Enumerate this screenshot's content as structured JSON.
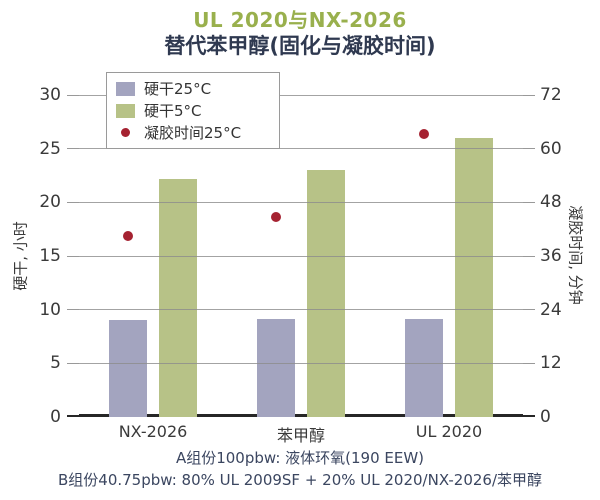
{
  "title": {
    "line1": "UL 2020与NX-2026",
    "line2": "替代苯甲醇(固化与凝胶时间)"
  },
  "footer": {
    "line1": "A组份100pbw: 液体环氧(190 EEW)",
    "line2": "B组份40.75pbw: 80% UL 2009SF + 20% UL 2020/NX-2026/苯甲醇"
  },
  "colors": {
    "bar_25c": "#a3a4bf",
    "bar_5c": "#b7c287",
    "gel_dot": "#a52231",
    "title_green": "#99b04d",
    "title_navy": "#2f3950",
    "footer_text": "#3b4660",
    "grid": "#8c8c8c",
    "axis": "#262626",
    "tick_text": "#3a3a3a"
  },
  "legend": {
    "items": [
      {
        "label": "硬干25°C",
        "marker": "square",
        "color_key": "bar_25c"
      },
      {
        "label": "硬干5°C",
        "marker": "square",
        "color_key": "bar_5c"
      },
      {
        "label": "凝胶时间25°C",
        "marker": "dot",
        "color_key": "gel_dot"
      }
    ]
  },
  "chart_data": {
    "type": "bar",
    "title": "UL 2020与NX-2026 替代苯甲醇(固化与凝胶时间)",
    "categories": [
      "NX-2026",
      "苯甲醇",
      "UL 2020"
    ],
    "series": [
      {
        "name": "硬干25°C",
        "type": "bar",
        "axis": "left",
        "values": [
          9.0,
          9.1,
          9.1
        ]
      },
      {
        "name": "硬干5°C",
        "type": "bar",
        "axis": "left",
        "values": [
          22.2,
          23.0,
          26.0
        ]
      },
      {
        "name": "凝胶时间25°C",
        "type": "scatter",
        "axis": "right",
        "values": [
          40.5,
          44.7,
          63.3
        ]
      }
    ],
    "left_axis": {
      "label": "硬干, 小时",
      "min": 0,
      "max": 30,
      "ticks": [
        0,
        5,
        10,
        15,
        20,
        25,
        30
      ]
    },
    "right_axis": {
      "label": "凝胶时间, 分钟",
      "min": 0,
      "max": 72,
      "ticks": [
        0,
        12,
        24,
        36,
        48,
        60,
        72
      ]
    },
    "grid": true,
    "legend_position": "top-left"
  }
}
